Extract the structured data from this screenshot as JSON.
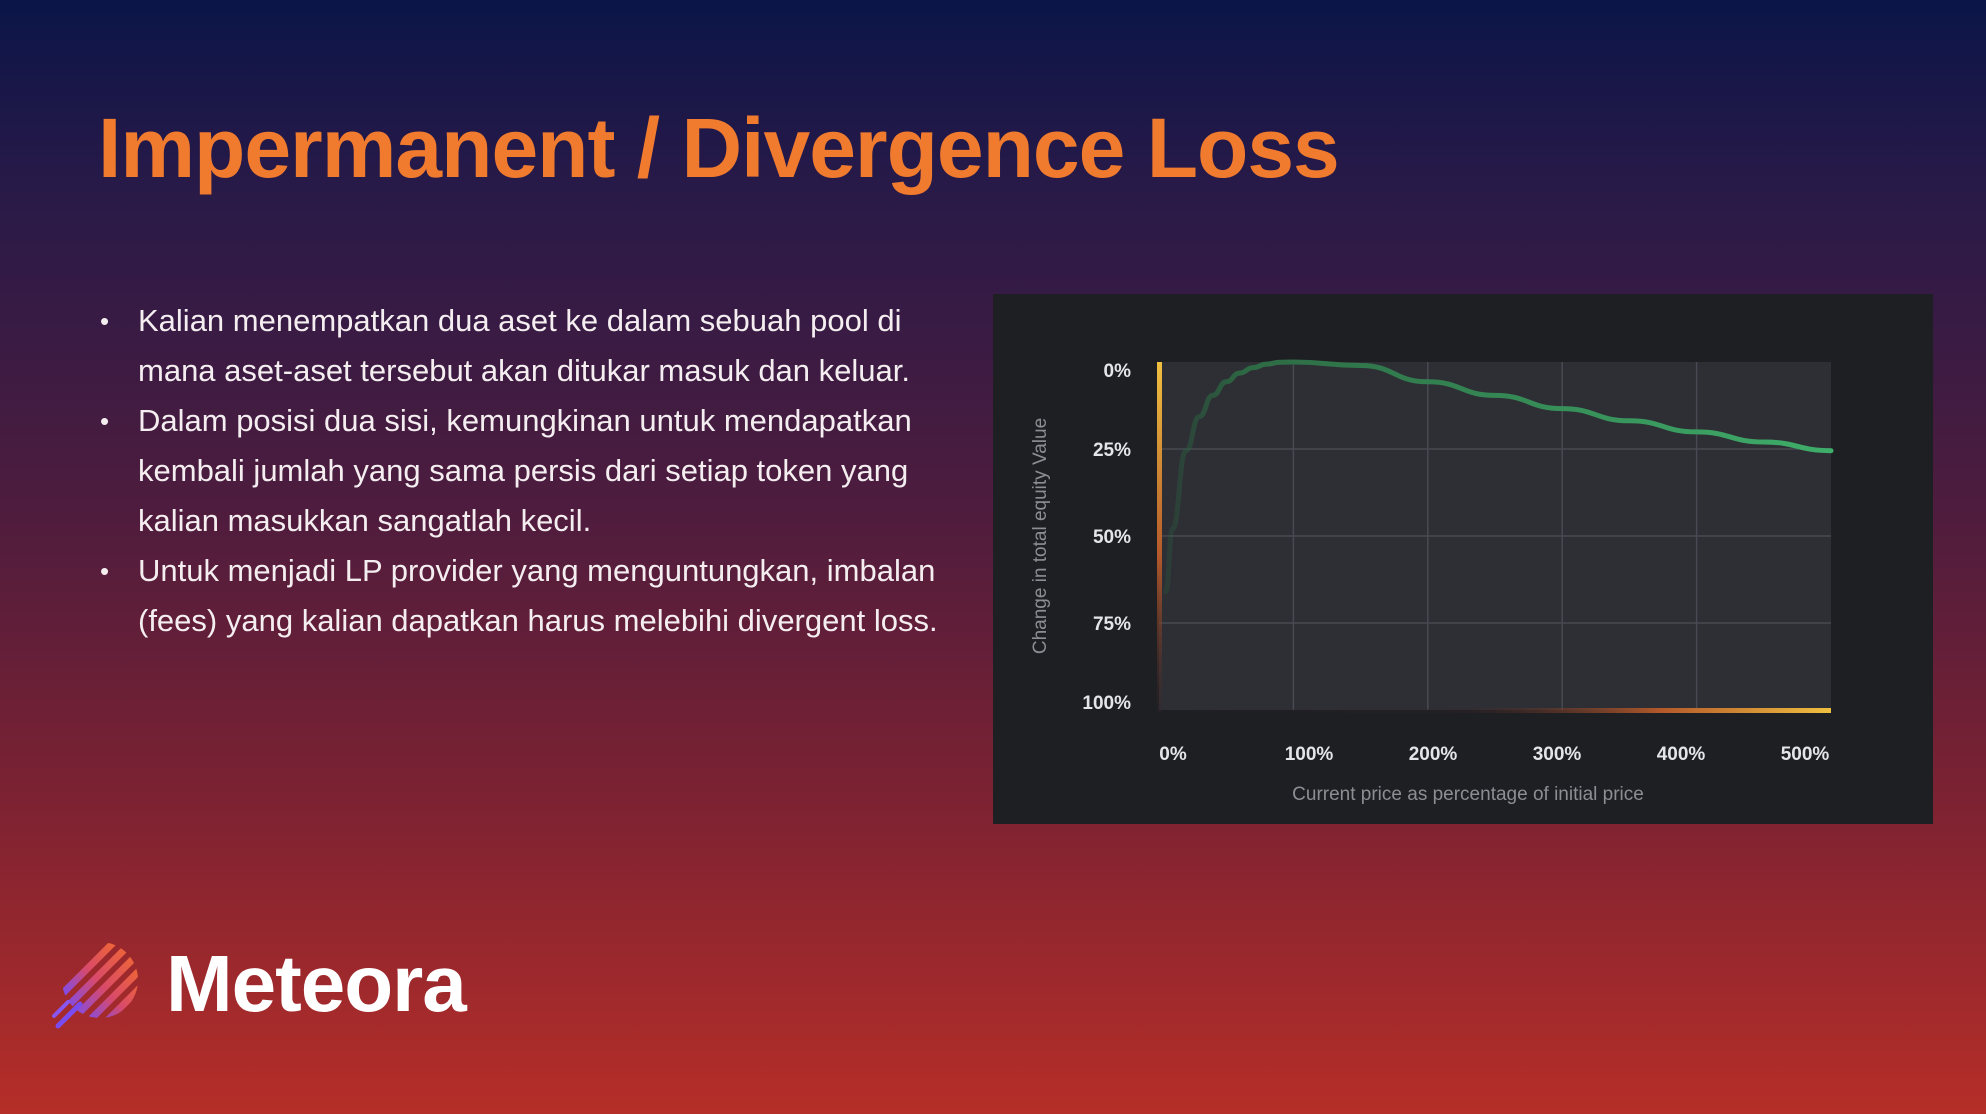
{
  "slide": {
    "title": "Impermanent / Divergence Loss",
    "bullets": [
      "Kalian menempatkan dua aset ke dalam sebuah pool di mana aset-aset tersebut akan ditukar masuk dan keluar.",
      "Dalam posisi dua sisi, kemungkinan untuk mendapatkan kembali jumlah yang sama persis dari setiap token yang kalian masukkan sangatlah kecil.",
      "Untuk menjadi LP provider yang menguntungkan, imbalan (fees) yang kalian dapatkan harus melebihi divergent loss."
    ],
    "bullet_symbol": "•",
    "brand": {
      "name": "Meteora",
      "logo_icon": "meteora-logo-icon"
    }
  },
  "chart_data": {
    "type": "line",
    "title": "",
    "xlabel": "Current price as percentage of initial price",
    "ylabel": "Change in total equity Value",
    "x_ticks": [
      "0%",
      "100%",
      "200%",
      "300%",
      "400%",
      "500%"
    ],
    "y_ticks": [
      "0%",
      "25%",
      "50%",
      "75%",
      "100%"
    ],
    "xlim": [
      0,
      500
    ],
    "ylim": [
      0,
      100
    ],
    "y_inverted": true,
    "grid": true,
    "colors": {
      "line": "#3fae6a",
      "axis_accent": "#f0c040",
      "plot_bg": "#2d2f35",
      "panel_bg": "#1e1f23"
    },
    "series": [
      {
        "x": [
          5,
          10,
          20,
          30,
          40,
          50,
          60,
          70,
          80,
          90,
          100,
          150,
          200,
          250,
          300,
          350,
          400,
          450,
          500
        ],
        "y": [
          66,
          48,
          25.5,
          15.7,
          9.6,
          5.7,
          3.2,
          1.6,
          0.6,
          0.1,
          0,
          1.0,
          5.7,
          9.6,
          13.4,
          16.9,
          20.1,
          23.0,
          25.5
        ]
      }
    ]
  }
}
